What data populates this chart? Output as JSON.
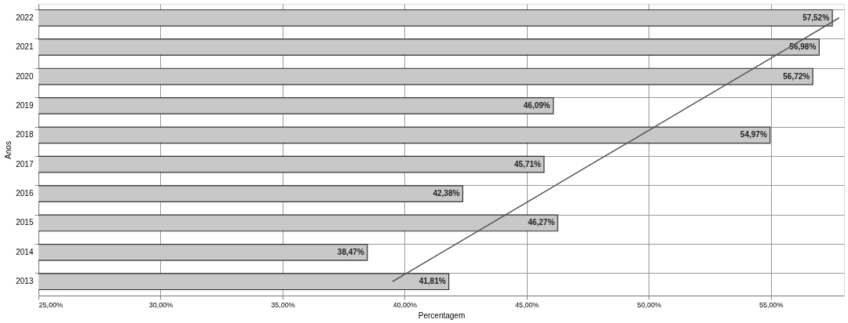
{
  "chart_data": {
    "type": "bar",
    "orientation": "horizontal",
    "xlabel": "Percentagem",
    "ylabel": "Anos",
    "categories": [
      "2022",
      "2021",
      "2020",
      "2019",
      "2018",
      "2017",
      "2016",
      "2015",
      "2014",
      "2013"
    ],
    "series": [
      {
        "color": "#c8c8c8",
        "values": [
          57.52,
          56.98,
          56.72,
          46.09,
          54.97,
          45.71,
          42.38,
          46.27,
          38.47,
          41.81
        ],
        "value_labels": [
          "57,52%",
          "56,98%",
          "56,72%",
          "46,09%",
          "54,97%",
          "45,71%",
          "42,38%",
          "46,27%",
          "38,47%",
          "41,81%"
        ]
      },
      {
        "type": "line",
        "color": "#555555",
        "values": [
          57.8,
          55.77,
          53.73,
          51.7,
          49.67,
          47.63,
          45.6,
          43.57,
          41.53,
          39.5
        ]
      }
    ],
    "xlim": [
      25,
      58
    ],
    "xticks": [
      {
        "value": 25,
        "label": "25,00%"
      },
      {
        "value": 30,
        "label": "30,00%"
      },
      {
        "value": 35,
        "label": "35,00%"
      },
      {
        "value": 40,
        "label": "40,00%"
      },
      {
        "value": 45,
        "label": "45,00%"
      },
      {
        "value": 50,
        "label": "50,00%"
      },
      {
        "value": 55,
        "label": "55,00%"
      }
    ],
    "grid": true
  }
}
